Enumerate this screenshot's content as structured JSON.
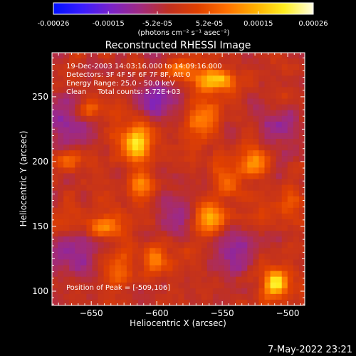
{
  "chart_data": {
    "type": "heatmap",
    "title": "Reconstructed RHESSI Image",
    "xlabel": "Heliocentric X (arcsec)",
    "ylabel": "Heliocentric Y (arcsec)",
    "xlim": [
      -680,
      -487
    ],
    "ylim": [
      89,
      284
    ],
    "x_ticks": [
      -650,
      -600,
      -550,
      -500
    ],
    "y_ticks": [
      100,
      150,
      200,
      250
    ],
    "colorbar": {
      "label": "(photons cm⁻² s⁻¹ asec⁻²)",
      "range": [
        -0.00026,
        0.00026
      ],
      "tick_values": [
        -0.00026,
        -0.00015,
        -5.2e-05,
        5.2e-05,
        0.00015,
        0.00026
      ],
      "tick_labels": [
        "-0.00026",
        "-0.00015",
        "-5.2e-05",
        "5.2e-05",
        "0.00015",
        "0.00026"
      ],
      "colors": [
        "#0010ff",
        "#3a1cff",
        "#7a22c8",
        "#a02a80",
        "#c03020",
        "#e04000",
        "#ff7000",
        "#ffb000",
        "#ffee20",
        "#fffde0"
      ]
    },
    "annotations": [
      "19-Dec-2003 14:03:16.000 to 14:09:16.000",
      "Detectors: 3F 4F 5F 6F 7F 8F, Att 0",
      "Energy Range: 25.0 - 50.0 keV",
      "Clean     Total counts: 5.72E+03"
    ],
    "peak_label": "Position of Peak = [-509,106]",
    "peak_position": [
      -509,
      106
    ],
    "image_value_min": -0.00026,
    "image_value_max": 0.00026,
    "bright_sources": [
      {
        "x": -509,
        "y": 106,
        "value": 0.00026
      },
      {
        "x": -615,
        "y": 215,
        "value": 0.00024
      },
      {
        "x": -555,
        "y": 262,
        "value": 0.00022
      },
      {
        "x": -525,
        "y": 200,
        "value": 0.00017
      },
      {
        "x": -560,
        "y": 155,
        "value": 0.00019
      },
      {
        "x": -640,
        "y": 150,
        "value": 0.00016
      },
      {
        "x": -612,
        "y": 180,
        "value": 0.00014
      },
      {
        "x": -565,
        "y": 235,
        "value": 0.00013
      },
      {
        "x": -650,
        "y": 240,
        "value": 0.00011
      },
      {
        "x": -600,
        "y": 125,
        "value": 0.00014
      },
      {
        "x": -545,
        "y": 185,
        "value": 0.0001
      },
      {
        "x": -670,
        "y": 200,
        "value": 0.00011
      },
      {
        "x": -500,
        "y": 165,
        "value": 0.0001
      },
      {
        "x": -632,
        "y": 118,
        "value": 0.00012
      },
      {
        "x": -585,
        "y": 270,
        "value": 0.00012
      }
    ],
    "dark_regions": [
      {
        "x": -670,
        "y": 230,
        "value": -0.00015
      },
      {
        "x": -600,
        "y": 250,
        "value": -0.00014
      },
      {
        "x": -580,
        "y": 160,
        "value": -0.00012
      },
      {
        "x": -540,
        "y": 130,
        "value": -0.00013
      },
      {
        "x": -660,
        "y": 130,
        "value": -0.00012
      },
      {
        "x": -505,
        "y": 225,
        "value": -0.0001
      }
    ]
  },
  "footer": {
    "timestamp": "7-May-2022 23:21"
  }
}
